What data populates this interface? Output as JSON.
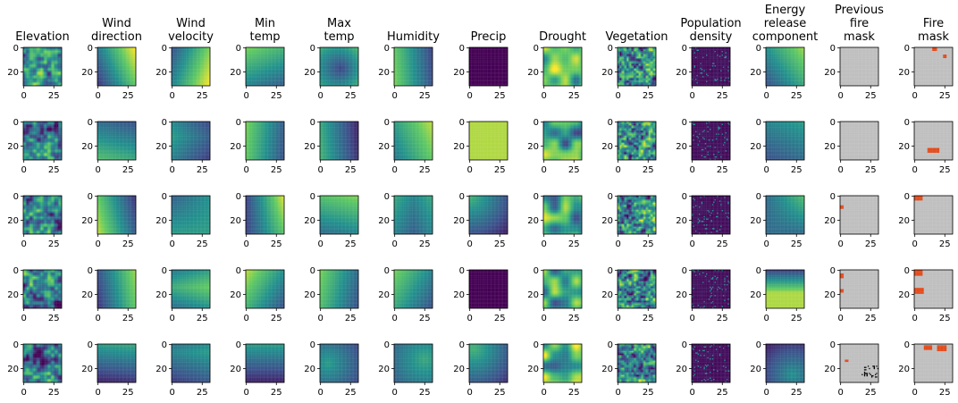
{
  "chart_data": {
    "type": "heatmap",
    "columns": [
      {
        "id": "elevation",
        "title_lines": [
          "Elevation"
        ]
      },
      {
        "id": "wind_direction",
        "title_lines": [
          "Wind",
          "direction"
        ]
      },
      {
        "id": "wind_velocity",
        "title_lines": [
          "Wind",
          "velocity"
        ]
      },
      {
        "id": "min_temp",
        "title_lines": [
          "Min",
          "temp"
        ]
      },
      {
        "id": "max_temp",
        "title_lines": [
          "Max",
          "temp"
        ]
      },
      {
        "id": "humidity",
        "title_lines": [
          "Humidity"
        ]
      },
      {
        "id": "precip",
        "title_lines": [
          "Precip"
        ]
      },
      {
        "id": "drought",
        "title_lines": [
          "Drought"
        ]
      },
      {
        "id": "vegetation",
        "title_lines": [
          "Vegetation"
        ]
      },
      {
        "id": "population_density",
        "title_lines": [
          "Population",
          "density"
        ]
      },
      {
        "id": "erc",
        "title_lines": [
          "Energy",
          "release",
          "component"
        ]
      },
      {
        "id": "prev_fire_mask",
        "title_lines": [
          "Previous",
          "fire",
          "mask"
        ]
      },
      {
        "id": "fire_mask",
        "title_lines": [
          "Fire",
          "mask"
        ]
      }
    ],
    "rows": 5,
    "grid_size": 32,
    "x_ticks": [
      0,
      25
    ],
    "y_ticks": [
      0,
      20
    ],
    "colormap": "viridis",
    "mask_colors": {
      "no_fire": "#bfbfbf",
      "fire": "#e34a1a",
      "no_data": "#000000"
    },
    "colormap_stops": [
      "#440154",
      "#3b528b",
      "#21908d",
      "#5dc863",
      "#fde725"
    ]
  }
}
